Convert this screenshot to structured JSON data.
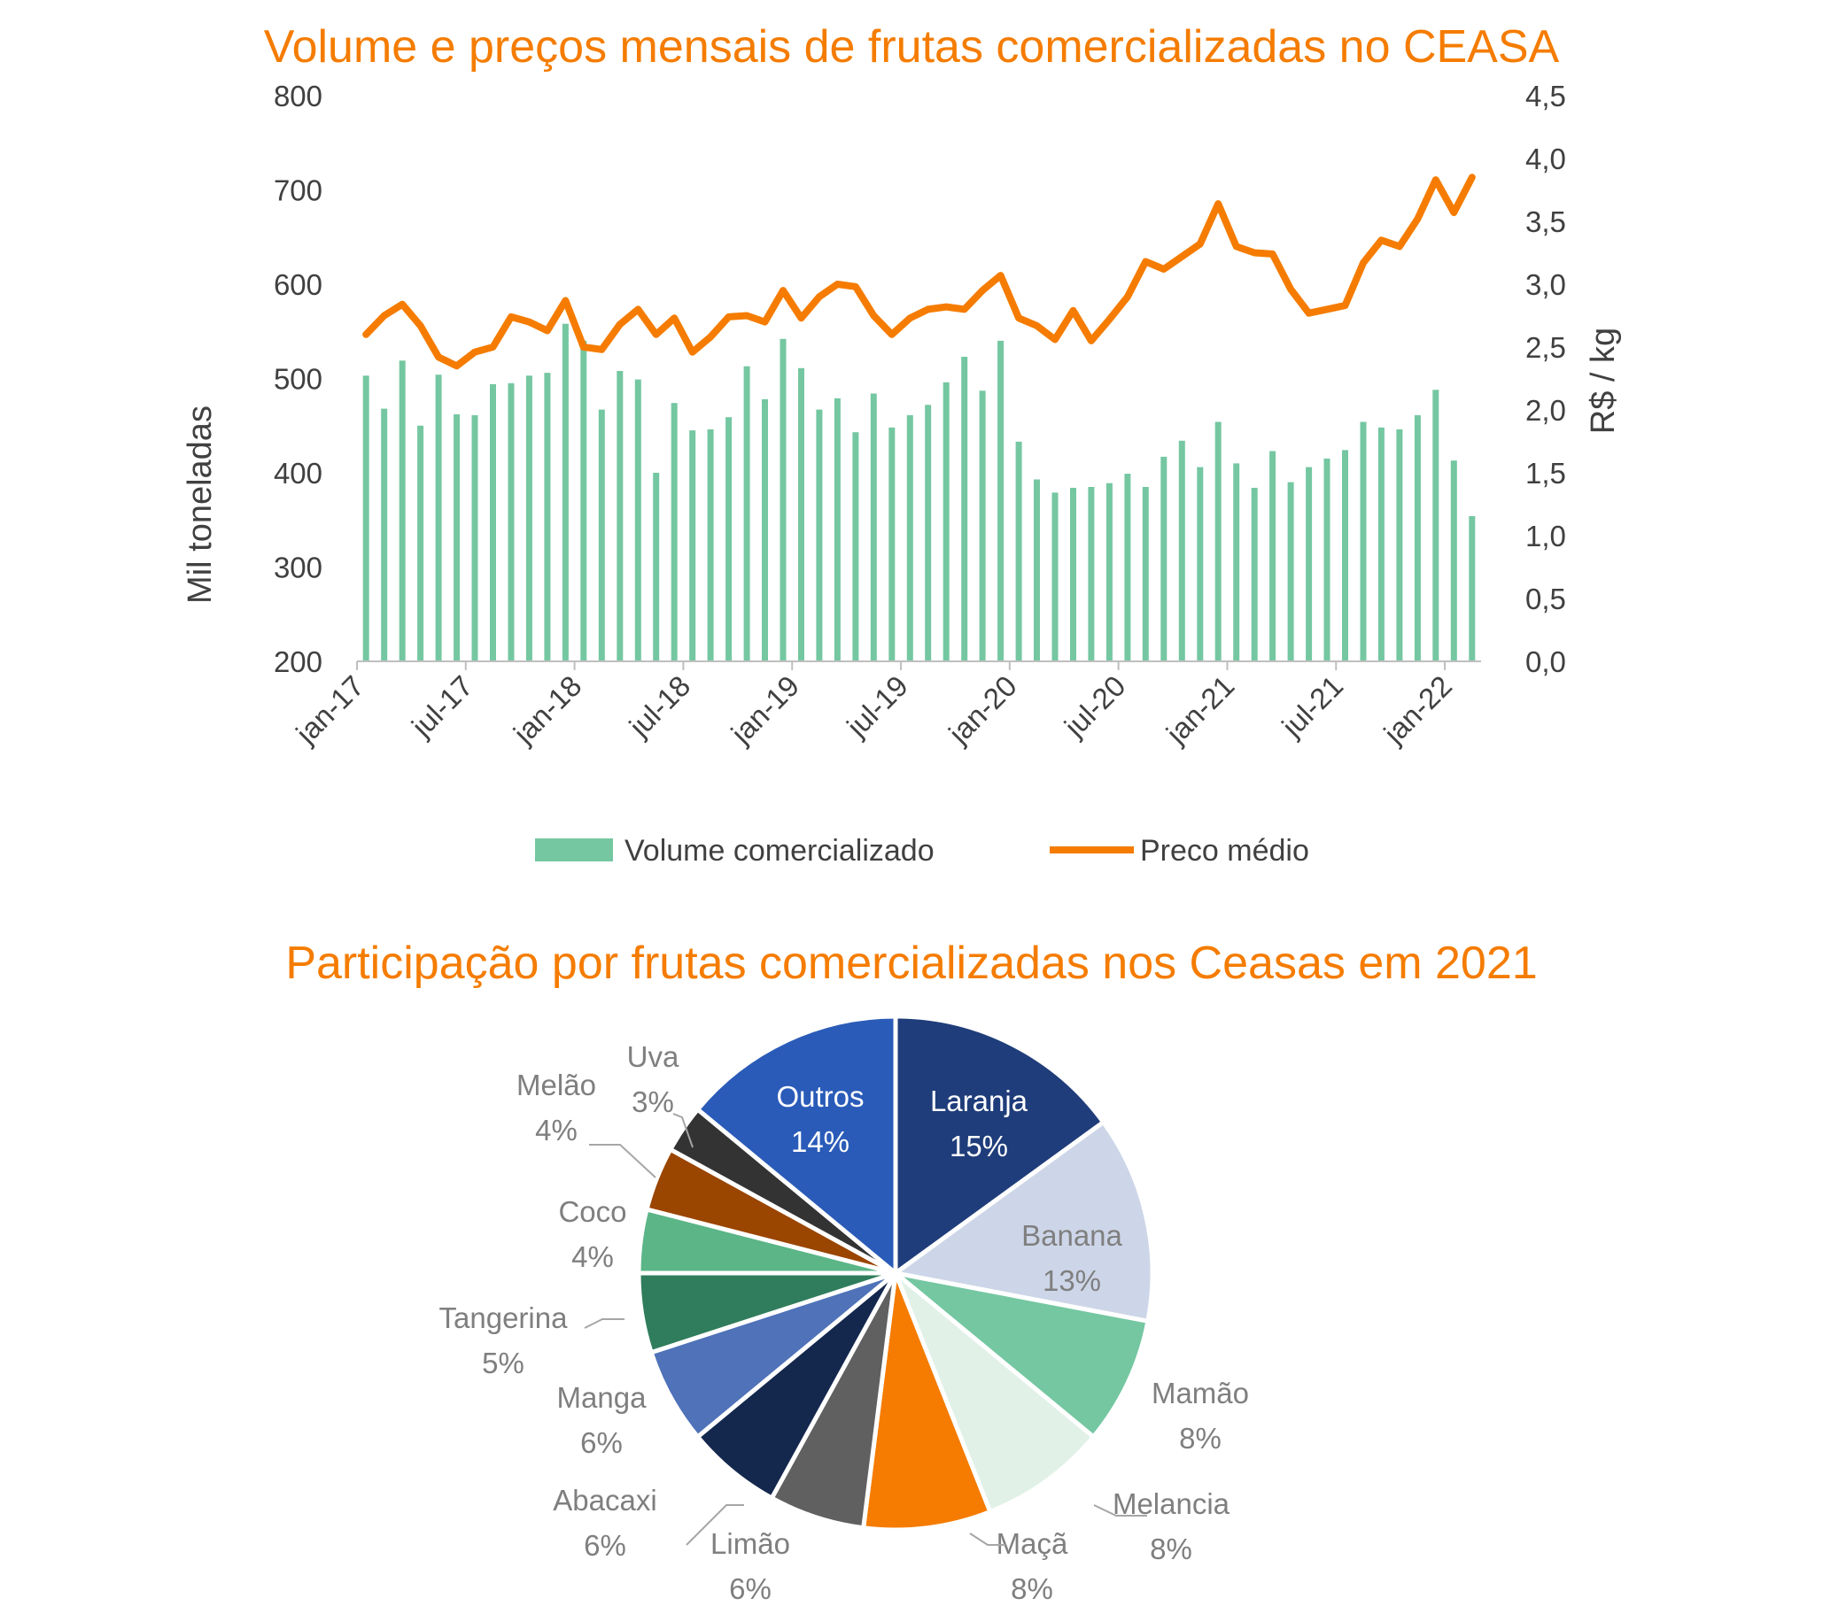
{
  "chart_data": [
    {
      "type": "bar",
      "title": "Volume e preços mensais de frutas comercializadas no CEASA",
      "ylabel": "Mil toneladas",
      "y2label": "R$ / kg",
      "ylim": [
        200,
        800
      ],
      "y2lim": [
        0.0,
        4.5
      ],
      "yticks": [
        "200",
        "300",
        "400",
        "500",
        "600",
        "700",
        "800"
      ],
      "y2ticks": [
        "0,0",
        "0,5",
        "1,0",
        "1,5",
        "2,0",
        "2,5",
        "3,0",
        "3,5",
        "4,0",
        "4,5"
      ],
      "xticks": [
        "jan-17",
        "jul-17",
        "jan-18",
        "jul-18",
        "jan-19",
        "jul-19",
        "jan-20",
        "jul-20",
        "jan-21",
        "jul-21",
        "jan-22"
      ],
      "legend_position": "bottom",
      "colors": {
        "volume": "#74c7a1",
        "price": "#f57c00",
        "axis": "#bfbfbf"
      },
      "series": [
        {
          "name": "Volume comercializado",
          "type": "bar",
          "axis": "left",
          "values": [
            503,
            468,
            519,
            450,
            504,
            462,
            461,
            494,
            495,
            503,
            506,
            558,
            540,
            467,
            508,
            499,
            400,
            474,
            445,
            446,
            459,
            513,
            478,
            542,
            511,
            467,
            479,
            443,
            484,
            448,
            461,
            472,
            496,
            523,
            487,
            540,
            433,
            393,
            379,
            384,
            385,
            389,
            399,
            385,
            417,
            434,
            406,
            454,
            410,
            384,
            423,
            390,
            406,
            415,
            424,
            454,
            448,
            446,
            461,
            488,
            413,
            354
          ]
        },
        {
          "name": "Preco médio",
          "type": "line",
          "axis": "right",
          "values": [
            2.6,
            2.75,
            2.84,
            2.67,
            2.42,
            2.35,
            2.46,
            2.5,
            2.74,
            2.7,
            2.63,
            2.87,
            2.5,
            2.48,
            2.68,
            2.8,
            2.6,
            2.73,
            2.46,
            2.58,
            2.74,
            2.75,
            2.7,
            2.95,
            2.73,
            2.9,
            3.0,
            2.98,
            2.75,
            2.6,
            2.73,
            2.8,
            2.82,
            2.8,
            2.95,
            3.07,
            2.73,
            2.67,
            2.56,
            2.79,
            2.55,
            2.72,
            2.9,
            3.18,
            3.12,
            3.22,
            3.32,
            3.64,
            3.3,
            3.25,
            3.24,
            2.96,
            2.77,
            2.8,
            2.83,
            3.17,
            3.35,
            3.3,
            3.52,
            3.83,
            3.57,
            3.85
          ]
        }
      ]
    },
    {
      "type": "pie",
      "title": "Participação por frutas comercializadas nos Ceasas   em 2021",
      "slices": [
        {
          "label": "Laranja",
          "pct": "15%",
          "value": 15,
          "color": "#1f3d7a",
          "label_color": "#ffffff"
        },
        {
          "label": "Banana",
          "pct": "13%",
          "value": 13,
          "color": "#cdd6e8",
          "label_color": "#7f7f7f"
        },
        {
          "label": "Mamão",
          "pct": "8%",
          "value": 8,
          "color": "#74c7a1",
          "label_color": "#7f7f7f"
        },
        {
          "label": "Melancia",
          "pct": "8%",
          "value": 8,
          "color": "#e1f1e8",
          "label_color": "#7f7f7f"
        },
        {
          "label": "Maçã",
          "pct": "8%",
          "value": 8,
          "color": "#f57c00",
          "label_color": "#7f7f7f"
        },
        {
          "label": "Limão",
          "pct": "6%",
          "value": 6,
          "color": "#606060",
          "label_color": "#7f7f7f"
        },
        {
          "label": "Abacaxi",
          "pct": "6%",
          "value": 6,
          "color": "#14284e",
          "label_color": "#7f7f7f"
        },
        {
          "label": "Manga",
          "pct": "6%",
          "value": 6,
          "color": "#4f72b8",
          "label_color": "#7f7f7f"
        },
        {
          "label": "Tangerina",
          "pct": "5%",
          "value": 5,
          "color": "#2f7d5c",
          "label_color": "#7f7f7f"
        },
        {
          "label": "Coco",
          "pct": "4%",
          "value": 4,
          "color": "#5bb587",
          "label_color": "#7f7f7f"
        },
        {
          "label": "Melão",
          "pct": "4%",
          "value": 4,
          "color": "#9a4500",
          "label_color": "#7f7f7f"
        },
        {
          "label": "Uva",
          "pct": "3%",
          "value": 3,
          "color": "#333333",
          "label_color": "#7f7f7f"
        },
        {
          "label": "Outros",
          "pct": "14%",
          "value": 14,
          "color": "#2a5bb8",
          "label_color": "#ffffff"
        }
      ]
    }
  ]
}
